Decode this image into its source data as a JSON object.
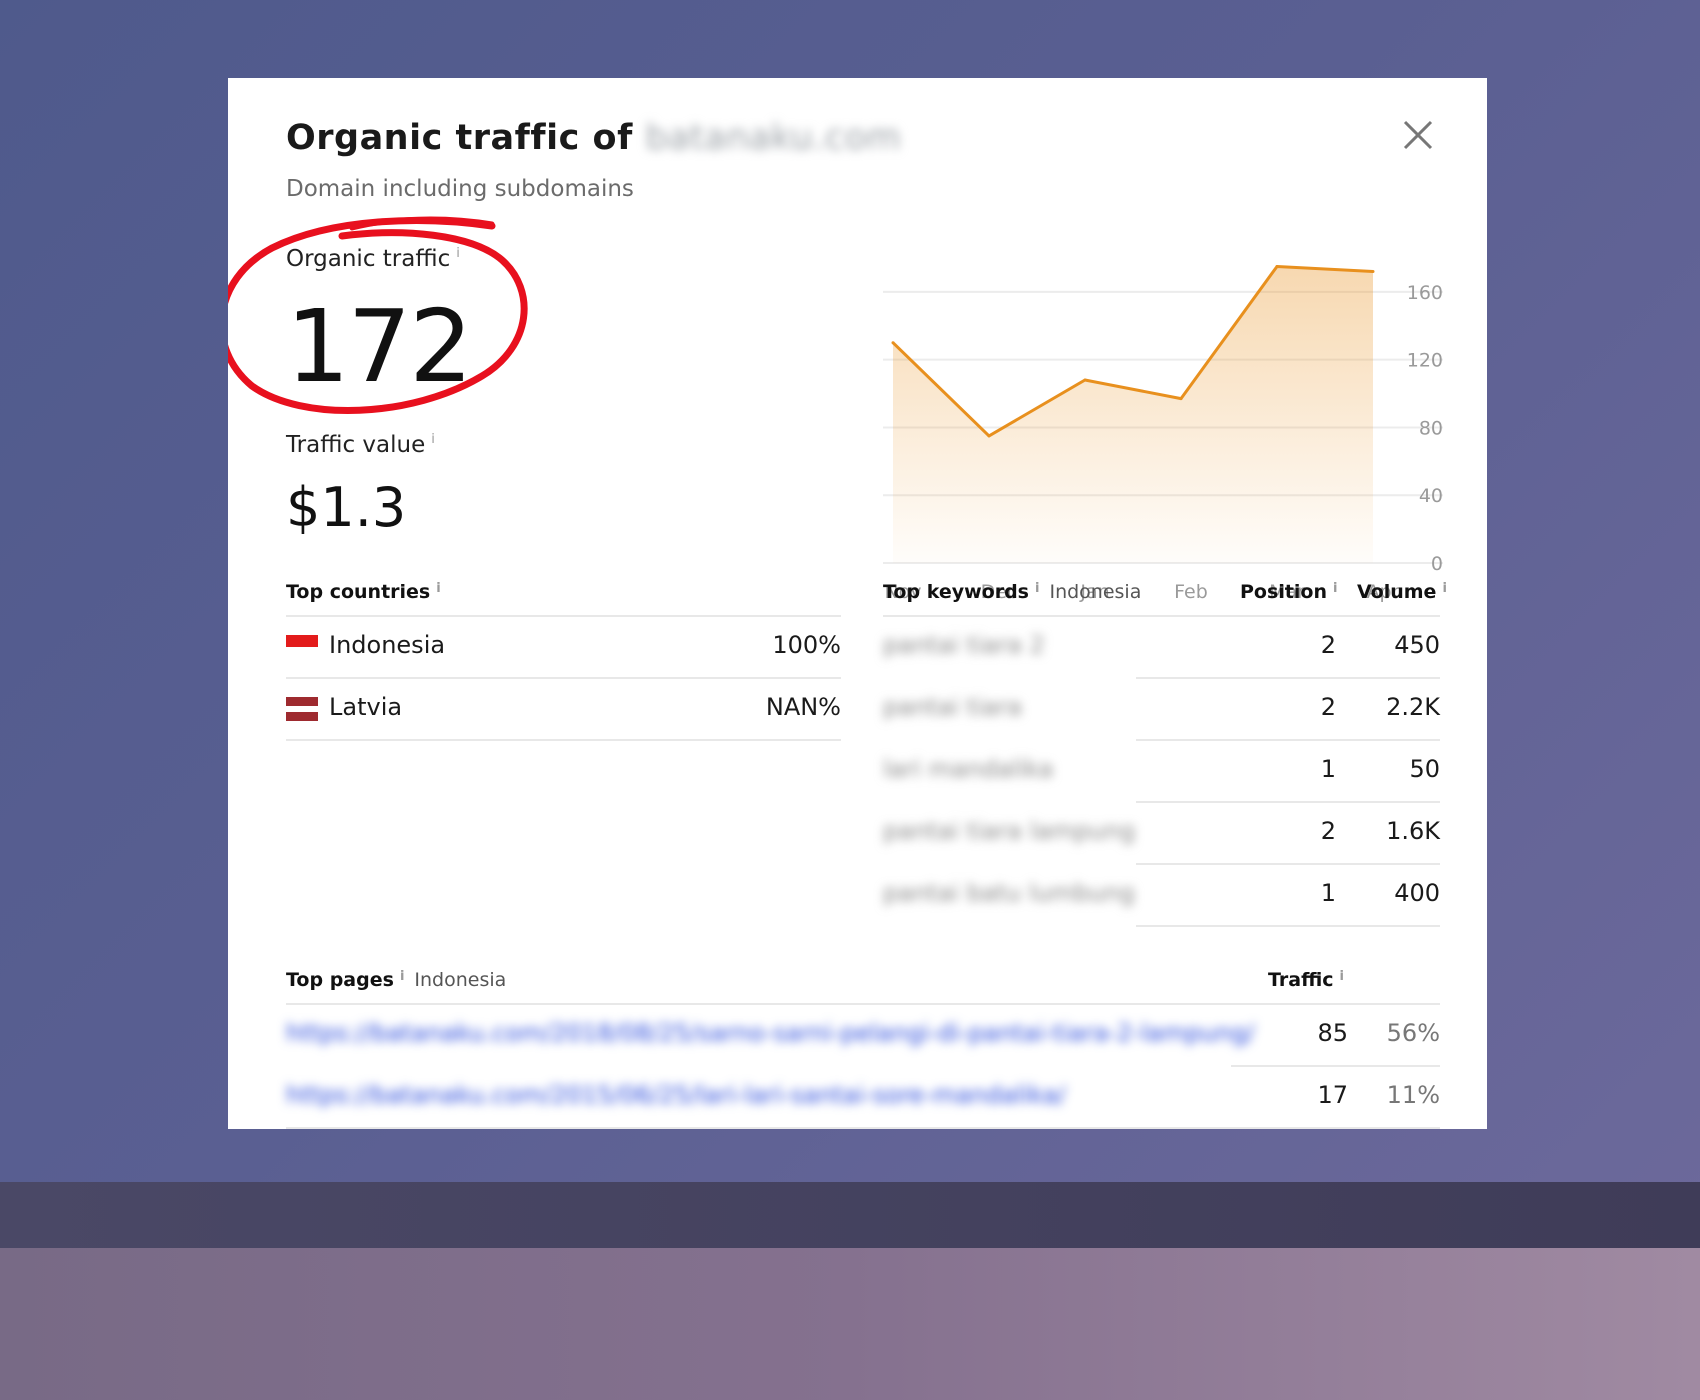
{
  "modal": {
    "title_prefix": "Organic traffic of",
    "title_domain": "batanaku.com",
    "subtitle": "Domain including subdomains"
  },
  "metrics": {
    "organic_traffic_label": "Organic traffic",
    "organic_traffic_value": "172",
    "traffic_value_label": "Traffic value",
    "traffic_value_value": "$1.3",
    "info": "i"
  },
  "colors": {
    "accent": "#e8901e",
    "annotation": "#e8101e",
    "indonesia_flag": "#e31b1b",
    "latvia_flag": "#9e2a2f"
  },
  "chart_data": {
    "type": "area",
    "categories": [
      "Nov",
      "Dec",
      "Jan",
      "Feb",
      "Mar",
      "Apr"
    ],
    "series": [
      {
        "values": [
          130,
          75,
          108,
          97,
          175,
          172
        ]
      }
    ],
    "yticks": [
      "160",
      "120",
      "80",
      "40",
      "0"
    ],
    "ylim": [
      0,
      180
    ],
    "grid": true
  },
  "top_countries": {
    "title": "Top countries",
    "rows": [
      {
        "name": "Indonesia",
        "value": "100%"
      },
      {
        "name": "Latvia",
        "value": "NAN%"
      }
    ]
  },
  "top_keywords": {
    "title": "Top keywords",
    "country": "Indonesia",
    "position_header": "Position",
    "volume_header": "Volume",
    "rows": [
      {
        "keyword": "pantai tiara 2",
        "position": "2",
        "volume": "450"
      },
      {
        "keyword": "pantai tiara",
        "position": "2",
        "volume": "2.2K"
      },
      {
        "keyword": "lari mandalika",
        "position": "1",
        "volume": "50"
      },
      {
        "keyword": "pantai tiara lampung",
        "position": "2",
        "volume": "1.6K"
      },
      {
        "keyword": "pantai batu lumbung",
        "position": "1",
        "volume": "400"
      }
    ]
  },
  "top_pages": {
    "title": "Top pages",
    "country": "Indonesia",
    "traffic_header": "Traffic",
    "rows": [
      {
        "url": "https://batanaku.com/2018/08/25/sarno-sarni-pelangi-di-pantai-tiara-2-lampung/",
        "traffic": "85",
        "percent": "56%"
      },
      {
        "url": "https://batanaku.com/2015/06/25/lari-lari-santai-sore-mandalika/",
        "traffic": "17",
        "percent": "11%"
      }
    ]
  }
}
